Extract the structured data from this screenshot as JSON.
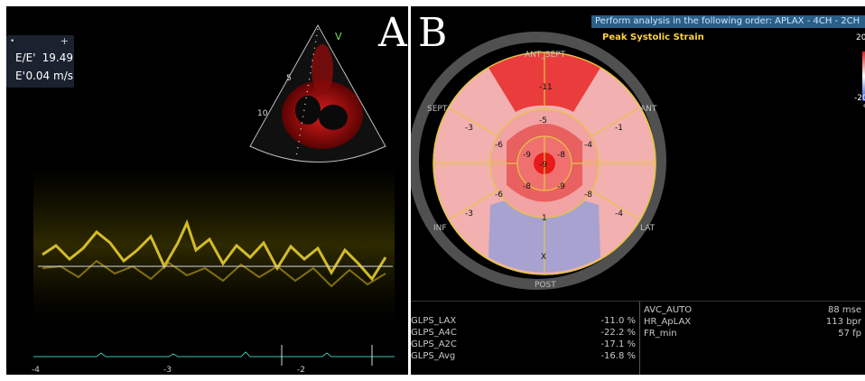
{
  "panel_a": {
    "letter": "A",
    "toolbar_icon": "•",
    "toolbar_plus": "+",
    "measurements": [
      {
        "label": "E/E'",
        "value": "19.49"
      },
      {
        "label": "E'",
        "value": "0.04 m/s"
      }
    ],
    "echo_depth_labels": [
      "5",
      "10"
    ],
    "echo_v_label": "V",
    "time_ticks": [
      "-4",
      "-3",
      "-2"
    ]
  },
  "panel_b": {
    "letter": "B",
    "banner_text": "Perform analysis in the following order: APLAX - 4CH - 2CH",
    "title": "Peak Systolic Strain",
    "scale_top": "20",
    "scale_bottom": "-20",
    "scale_unit": "%",
    "bullseye": {
      "labels": {
        "top": "ANT_SEPT",
        "upper_left": "SEPT",
        "upper_right": "ANT",
        "lower_left": "INF",
        "lower_right": "LAT",
        "bottom": "POST"
      },
      "outer_values": [
        "-11",
        "-1",
        "-4",
        "X",
        "-3",
        "-3"
      ],
      "mid_values": [
        "-5",
        "-4",
        "-8",
        "1",
        "-6",
        "-6"
      ],
      "inner_values": [
        "-8",
        "-9",
        "-8",
        "-9"
      ],
      "apex_value": "-9"
    },
    "left_table": [
      {
        "label": "GLPS_LAX",
        "value": "-11.0 %"
      },
      {
        "label": "GLPS_A4C",
        "value": "-22.2 %"
      },
      {
        "label": "GLPS_A2C",
        "value": "-17.1 %"
      },
      {
        "label": "GLPS_Avg",
        "value": "-16.8 %"
      }
    ],
    "right_table": [
      {
        "label": "AVC_AUTO",
        "value": "88 mse"
      },
      {
        "label": "HR_ApLAX",
        "value": "113 bpr"
      },
      {
        "label": "FR_min",
        "value": "57 fp"
      }
    ]
  }
}
